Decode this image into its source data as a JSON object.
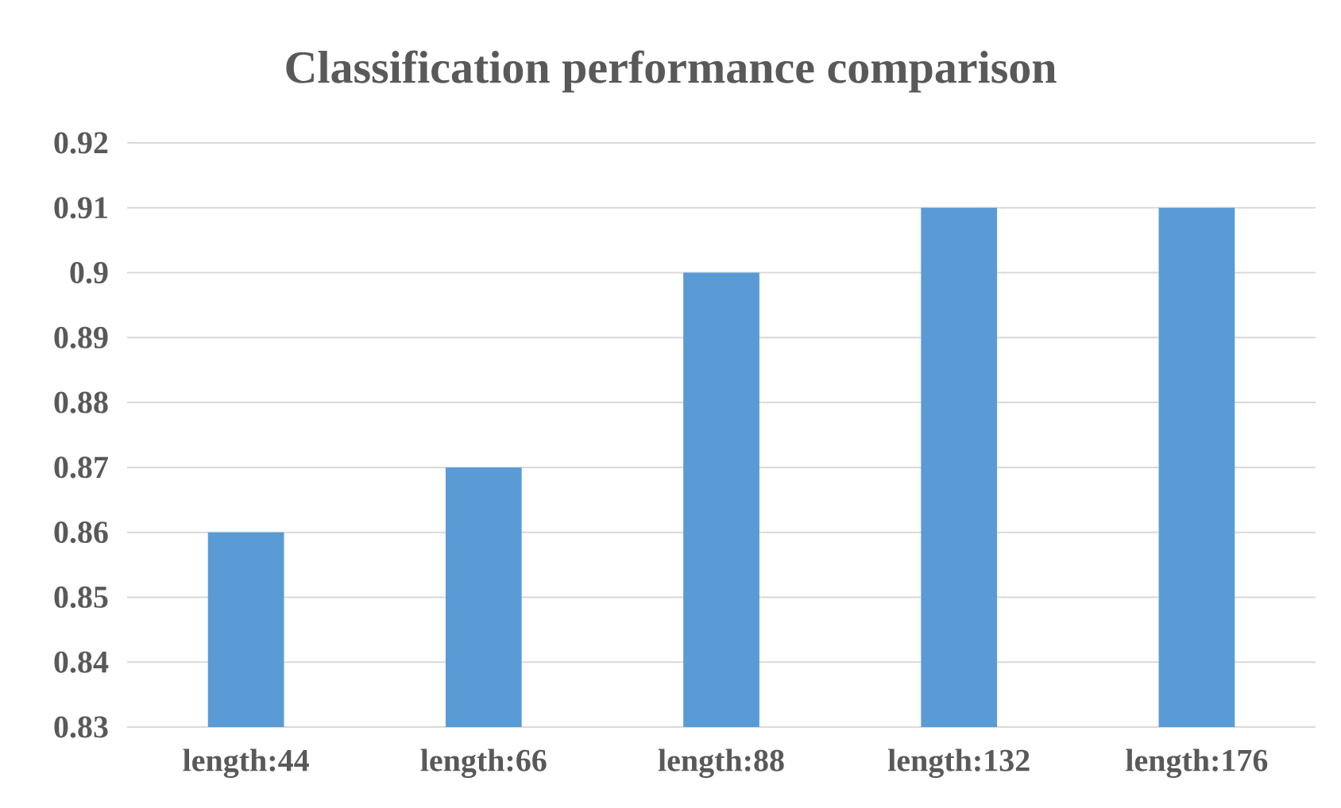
{
  "chart_data": {
    "type": "bar",
    "title": "Classification performance comparison",
    "categories": [
      "length:44",
      "length:66",
      "length:88",
      "length:132",
      "length:176"
    ],
    "values": [
      0.86,
      0.87,
      0.9,
      0.91,
      0.91
    ],
    "color": "#5b9bd5",
    "ylim": [
      0.83,
      0.92
    ],
    "yticks": [
      0.83,
      0.84,
      0.85,
      0.86,
      0.87,
      0.88,
      0.89,
      0.9,
      0.91,
      0.92
    ],
    "grid": "y"
  }
}
